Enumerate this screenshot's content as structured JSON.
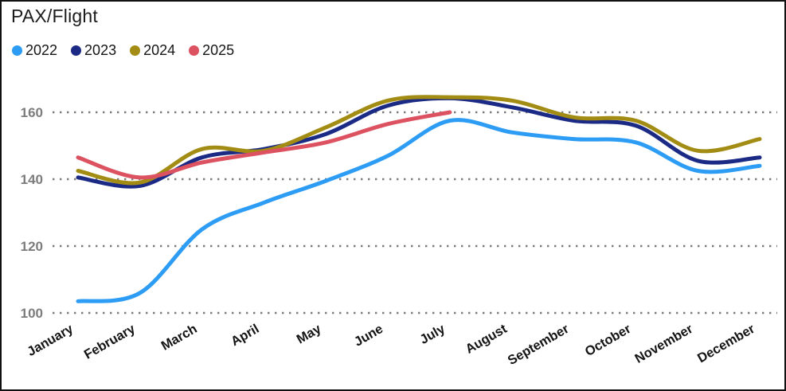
{
  "window": {
    "title": "PAX/Flight"
  },
  "chart_data": {
    "type": "line",
    "title": "PAX/Flight",
    "categories": [
      "January",
      "February",
      "March",
      "April",
      "May",
      "June",
      "July",
      "August",
      "September",
      "October",
      "November",
      "December"
    ],
    "series": [
      {
        "name": "2022",
        "color": "#2d9cf4",
        "values": [
          103.5,
          106,
          125,
          133,
          139.5,
          147,
          157.5,
          154,
          152,
          151,
          142.5,
          144
        ]
      },
      {
        "name": "2023",
        "color": "#1b2a85",
        "values": [
          140.5,
          138,
          146.5,
          149,
          153.5,
          162,
          164.2,
          161.5,
          157.5,
          156,
          145.5,
          146.5
        ]
      },
      {
        "name": "2024",
        "color": "#a38c13",
        "values": [
          142.5,
          139,
          149,
          148.5,
          155.5,
          163.5,
          164.5,
          163.5,
          158.5,
          157.5,
          148.5,
          152
        ]
      },
      {
        "name": "2025",
        "color": "#dc5261",
        "values": [
          146.5,
          140.5,
          145,
          148,
          151,
          156.5,
          160
        ]
      }
    ],
    "y_ticks": [
      160,
      140,
      120,
      100
    ],
    "ylim": [
      97,
      168
    ],
    "xlabel": "",
    "ylabel": "",
    "grid": "horizontal-dotted",
    "legend_position": "top-left",
    "grid_color": "#7a7a7a",
    "tick_label_color": "#7c7c7c",
    "category_label_color": "#141414"
  }
}
